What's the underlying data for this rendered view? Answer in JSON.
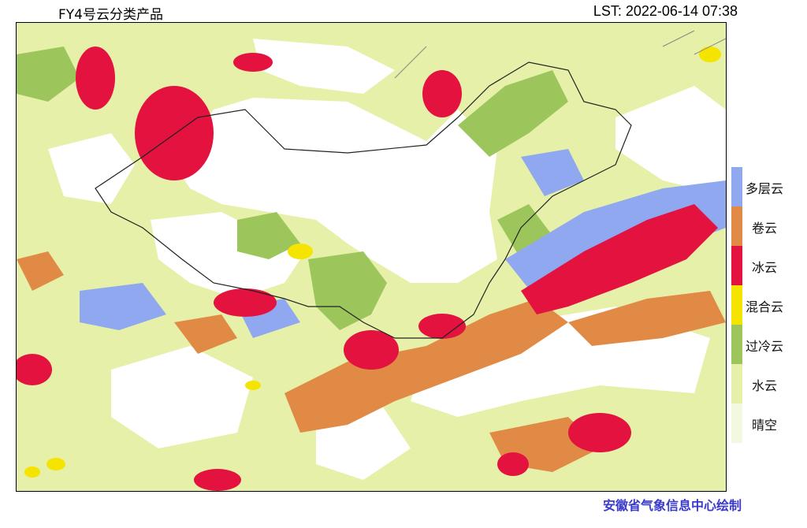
{
  "header": {
    "title": "FY4号云分类产品",
    "timestamp": "LST: 2022-06-14 07:38"
  },
  "legend": {
    "items": [
      {
        "label": "多层云",
        "color": "#8fa8f0"
      },
      {
        "label": "卷云",
        "color": "#e08a45"
      },
      {
        "label": "冰云",
        "color": "#e3123f"
      },
      {
        "label": "混合云",
        "color": "#f5e300"
      },
      {
        "label": "过冷云",
        "color": "#9cc65b"
      },
      {
        "label": "水云",
        "color": "#e6f0a8"
      },
      {
        "label": "晴空",
        "color": "#f3f8e0"
      }
    ]
  },
  "footer": {
    "credit": "安徽省气象信息中心绘制"
  }
}
